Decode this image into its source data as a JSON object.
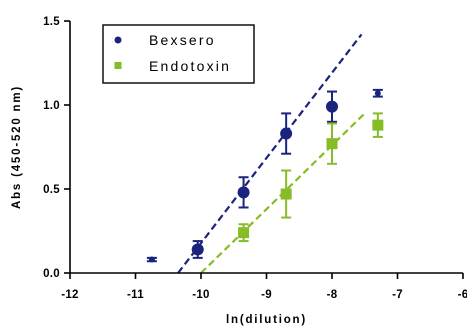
{
  "chart_data": {
    "type": "scatter",
    "xlabel": "ln(dilution)",
    "ylabel": "Abs (450-520 nm)",
    "xlim": [
      -12,
      -6
    ],
    "ylim": [
      0,
      1.5
    ],
    "x_ticks": [
      -12,
      -11,
      -10,
      -9,
      -8,
      -7,
      -6
    ],
    "x_tick_labels": [
      "-12",
      "-11",
      "-10",
      "-9",
      "-8",
      "-7",
      "-6"
    ],
    "y_ticks": [
      0,
      0.5,
      1.0,
      1.5
    ],
    "y_tick_labels": [
      "0.0",
      "0.5",
      "1.0",
      "1.5"
    ],
    "grid": false,
    "legend_position": "top-left",
    "series": [
      {
        "name": "Bexsero",
        "marker": "circle",
        "color": "#1a237e",
        "points": [
          {
            "x": -10.75,
            "y": 0.08,
            "err": 0.01
          },
          {
            "x": -10.05,
            "y": 0.14,
            "err": 0.05
          },
          {
            "x": -9.35,
            "y": 0.48,
            "err": 0.09
          },
          {
            "x": -8.7,
            "y": 0.83,
            "err": 0.12
          },
          {
            "x": -8.0,
            "y": 0.99,
            "err": 0.09
          },
          {
            "x": -7.3,
            "y": 1.07,
            "err": 0.02
          }
        ],
        "fit": {
          "x1": -10.35,
          "y1": 0.0,
          "x2": -7.55,
          "y2": 1.42
        }
      },
      {
        "name": "Endotoxin",
        "marker": "square",
        "color": "#86bc25",
        "points": [
          {
            "x": -9.35,
            "y": 0.24,
            "err": 0.05
          },
          {
            "x": -8.7,
            "y": 0.47,
            "err": 0.14
          },
          {
            "x": -8.0,
            "y": 0.77,
            "err": 0.12
          },
          {
            "x": -7.3,
            "y": 0.88,
            "err": 0.07
          }
        ],
        "fit": {
          "x1": -10.0,
          "y1": 0.0,
          "x2": -7.5,
          "y2": 0.95
        }
      }
    ]
  }
}
